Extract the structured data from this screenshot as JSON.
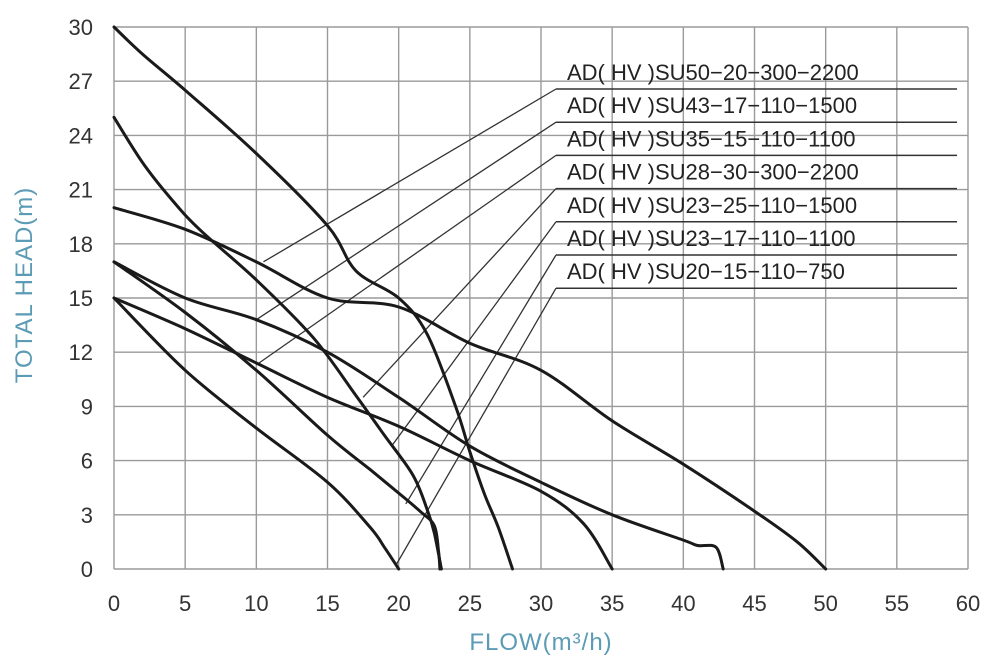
{
  "chart_data": {
    "type": "line",
    "xlabel": "FLOW(m³/h)",
    "ylabel": "TOTAL HEAD(m)",
    "xlim": [
      0,
      60
    ],
    "ylim": [
      0,
      30
    ],
    "xticks": [
      "0",
      "5",
      "10",
      "15",
      "20",
      "25",
      "30",
      "35",
      "40",
      "45",
      "50",
      "55",
      "60"
    ],
    "yticks": [
      "0",
      "3",
      "6",
      "9",
      "12",
      "15",
      "18",
      "21",
      "24",
      "27",
      "30"
    ],
    "grid": true,
    "label_color": "#5b9bb5",
    "line_color": "#1a1a1a",
    "grid_color": "#9a9a9a",
    "series": [
      {
        "name": "AD( HV )SU50−20−300−2200",
        "x": [
          0,
          5,
          10,
          15,
          20,
          25,
          30,
          35,
          40,
          45,
          48,
          50
        ],
        "y": [
          20,
          18.8,
          17,
          15,
          14.5,
          12.5,
          11,
          8.2,
          5.8,
          3.2,
          1.5,
          0
        ],
        "callout_anchor": [
          10.5,
          17
        ]
      },
      {
        "name": "AD( HV )SU43−17−110−1500",
        "x": [
          0,
          5,
          10,
          15,
          20,
          25,
          30,
          35,
          40,
          41,
          42.3,
          42.8
        ],
        "y": [
          17,
          15,
          13.8,
          12,
          9.5,
          6.8,
          4.8,
          3,
          1.6,
          1.3,
          1.2,
          0
        ],
        "callout_anchor": [
          10,
          13.8
        ]
      },
      {
        "name": "AD( HV )SU35−15−110−1100",
        "x": [
          0,
          5,
          10,
          15,
          20,
          25,
          30,
          33,
          35
        ],
        "y": [
          15,
          13.3,
          11.4,
          9.5,
          7.9,
          6,
          4.3,
          2.5,
          0
        ],
        "callout_anchor": [
          10,
          11.3
        ]
      },
      {
        "name": "AD( HV )SU28−30−300−2200",
        "x": [
          0,
          2,
          5,
          10,
          15,
          17,
          20,
          22,
          24,
          25,
          26,
          27,
          28
        ],
        "y": [
          30,
          28.5,
          26.5,
          23,
          19,
          16.5,
          15,
          13,
          9,
          6.5,
          4.2,
          2.3,
          0
        ],
        "callout_anchor": [
          17.5,
          9.5
        ]
      },
      {
        "name": "AD( HV )SU23−25−110−1500",
        "x": [
          0,
          2,
          4,
          6,
          10,
          14,
          17,
          19,
          21,
          22,
          22.5,
          23
        ],
        "y": [
          25,
          22.5,
          20.5,
          18.8,
          16,
          12.8,
          9.6,
          7.4,
          5.2,
          3.3,
          2,
          0
        ],
        "callout_anchor": [
          19.5,
          6.8
        ]
      },
      {
        "name": "AD( HV )SU23−17−110−1100",
        "x": [
          0,
          5,
          10,
          15,
          18,
          20,
          21.5,
          22.5,
          22.8,
          22.9
        ],
        "y": [
          17,
          14.2,
          11,
          7.4,
          5.5,
          4.2,
          3.2,
          2.4,
          1,
          0
        ],
        "callout_anchor": [
          20.5,
          3.6
        ]
      },
      {
        "name": "AD( HV )SU20−15−110−750",
        "x": [
          0,
          5,
          10,
          15,
          18,
          19,
          20
        ],
        "y": [
          15,
          11,
          7.8,
          4.8,
          2.3,
          1.2,
          0
        ],
        "callout_anchor": [
          19.8,
          0.2
        ]
      }
    ]
  }
}
